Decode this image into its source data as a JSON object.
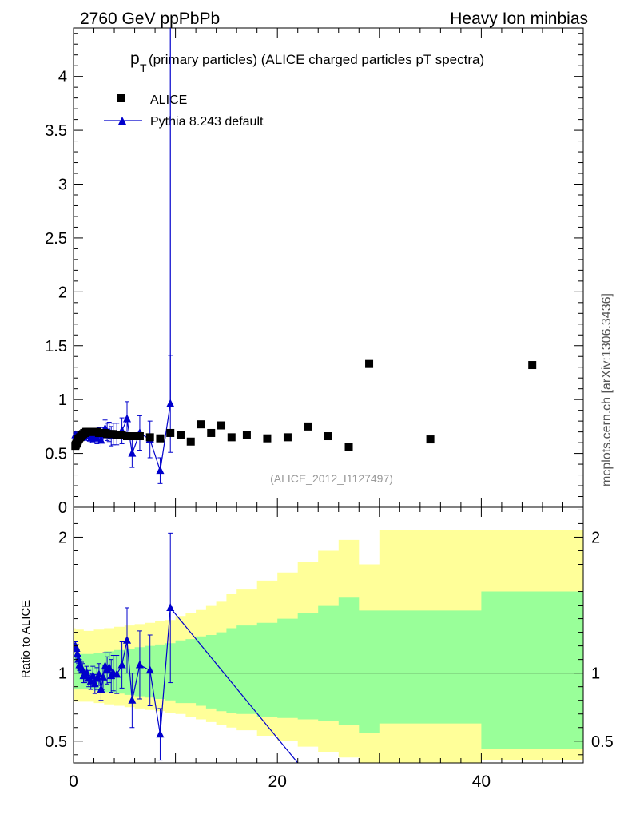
{
  "header": {
    "left": "2760 GeV ppPbPb",
    "right": "Heavy Ion minbias"
  },
  "side_label": "mcplots.cern.ch [arXiv:1306.3436]",
  "chart_data": [
    {
      "type": "scatter",
      "title_main": "p",
      "title_sub": "T",
      "title_rest": "(primary particles) (ALICE charged particles pT spectra)",
      "watermark": "(ALICE_2012_I1127497)",
      "xlim": [
        0,
        50
      ],
      "ylim": [
        0,
        4.45
      ],
      "y_ticks": [
        "0",
        "0.5",
        "1",
        "1.5",
        "2",
        "2.5",
        "3",
        "3.5",
        "4"
      ],
      "grid": false,
      "legend_position": "top-left",
      "series": [
        {
          "name": "ALICE",
          "marker": "square",
          "color": "#000000",
          "points": [
            [
              0.18,
              0.57
            ],
            [
              0.22,
              0.58
            ],
            [
              0.28,
              0.59
            ],
            [
              0.33,
              0.6
            ],
            [
              0.38,
              0.61
            ],
            [
              0.43,
              0.62
            ],
            [
              0.48,
              0.63
            ],
            [
              0.55,
              0.64
            ],
            [
              0.65,
              0.65
            ],
            [
              0.75,
              0.66
            ],
            [
              0.85,
              0.67
            ],
            [
              0.95,
              0.68
            ],
            [
              1.05,
              0.69
            ],
            [
              1.15,
              0.69
            ],
            [
              1.25,
              0.7
            ],
            [
              1.35,
              0.7
            ],
            [
              1.5,
              0.7
            ],
            [
              1.7,
              0.7
            ],
            [
              1.9,
              0.7
            ],
            [
              2.1,
              0.7
            ],
            [
              2.3,
              0.7
            ],
            [
              2.5,
              0.69
            ],
            [
              2.7,
              0.69
            ],
            [
              2.9,
              0.69
            ],
            [
              3.1,
              0.69
            ],
            [
              3.3,
              0.68
            ],
            [
              3.5,
              0.68
            ],
            [
              3.7,
              0.68
            ],
            [
              3.9,
              0.68
            ],
            [
              4.25,
              0.67
            ],
            [
              4.75,
              0.67
            ],
            [
              5.25,
              0.66
            ],
            [
              5.75,
              0.66
            ],
            [
              6.5,
              0.66
            ],
            [
              7.5,
              0.65
            ],
            [
              8.5,
              0.64
            ],
            [
              9.5,
              0.69
            ],
            [
              10.5,
              0.67
            ],
            [
              11.5,
              0.61
            ],
            [
              12.5,
              0.77
            ],
            [
              13.5,
              0.69
            ],
            [
              14.5,
              0.76
            ],
            [
              15.5,
              0.65
            ],
            [
              17.0,
              0.67
            ],
            [
              19.0,
              0.64
            ],
            [
              21.0,
              0.65
            ],
            [
              23.0,
              0.75
            ],
            [
              25.0,
              0.66
            ],
            [
              27.0,
              0.56
            ],
            [
              29.0,
              1.33
            ],
            [
              35.0,
              0.63
            ],
            [
              45.0,
              1.32
            ]
          ]
        },
        {
          "name": "Pythia 8.243 default",
          "marker": "triangle",
          "color": "#0000cc",
          "points": [
            [
              0.18,
              0.67,
              0.02
            ],
            [
              0.28,
              0.66,
              0.02
            ],
            [
              0.38,
              0.66,
              0.02
            ],
            [
              0.48,
              0.67,
              0.02
            ],
            [
              0.58,
              0.66,
              0.02
            ],
            [
              0.68,
              0.67,
              0.03
            ],
            [
              0.78,
              0.68,
              0.03
            ],
            [
              0.88,
              0.68,
              0.03
            ],
            [
              0.98,
              0.65,
              0.03
            ],
            [
              1.1,
              0.67,
              0.03
            ],
            [
              1.3,
              0.68,
              0.03
            ],
            [
              1.5,
              0.66,
              0.04
            ],
            [
              1.7,
              0.64,
              0.04
            ],
            [
              1.9,
              0.66,
              0.05
            ],
            [
              2.1,
              0.65,
              0.05
            ],
            [
              2.3,
              0.64,
              0.05
            ],
            [
              2.5,
              0.68,
              0.06
            ],
            [
              2.7,
              0.62,
              0.06
            ],
            [
              2.9,
              0.67,
              0.07
            ],
            [
              3.1,
              0.73,
              0.08
            ],
            [
              3.3,
              0.7,
              0.08
            ],
            [
              3.5,
              0.7,
              0.09
            ],
            [
              3.7,
              0.66,
              0.09
            ],
            [
              3.9,
              0.68,
              0.1
            ],
            [
              4.25,
              0.68,
              0.1
            ],
            [
              4.75,
              0.71,
              0.12
            ],
            [
              5.25,
              0.82,
              0.16
            ],
            [
              5.75,
              0.5,
              0.13
            ],
            [
              6.5,
              0.69,
              0.16
            ],
            [
              7.5,
              0.63,
              0.17
            ],
            [
              8.5,
              0.34,
              0.12
            ],
            [
              9.5,
              0.96,
              0.45
            ]
          ],
          "spike": {
            "x": 9.5,
            "y_top": 4.45
          }
        }
      ]
    },
    {
      "type": "line",
      "ylabel": "Ratio to ALICE",
      "xlim": [
        0,
        50
      ],
      "ylim": [
        0.34,
        2.22
      ],
      "x_ticks": [
        "0",
        "20",
        "40"
      ],
      "y_ticks": [
        "0.5",
        "1",
        "2"
      ],
      "band_edges": [
        0,
        0.2,
        0.5,
        1,
        2,
        3,
        4,
        5,
        6,
        7,
        8,
        9,
        10,
        11,
        12,
        13,
        14,
        15,
        16,
        18,
        20,
        22,
        24,
        26,
        28,
        30,
        40,
        50
      ],
      "band_green_lo": [
        0.88,
        0.88,
        0.88,
        0.88,
        0.87,
        0.86,
        0.85,
        0.84,
        0.83,
        0.82,
        0.81,
        0.8,
        0.78,
        0.78,
        0.76,
        0.74,
        0.72,
        0.71,
        0.7,
        0.68,
        0.67,
        0.66,
        0.65,
        0.62,
        0.56,
        0.63,
        0.44
      ],
      "band_green_hi": [
        1.14,
        1.14,
        1.14,
        1.14,
        1.15,
        1.16,
        1.17,
        1.18,
        1.19,
        1.2,
        1.21,
        1.22,
        1.24,
        1.25,
        1.27,
        1.28,
        1.3,
        1.33,
        1.35,
        1.37,
        1.4,
        1.44,
        1.5,
        1.56,
        1.46,
        1.46,
        1.6
      ],
      "band_yellow_lo": [
        0.79,
        0.79,
        0.79,
        0.79,
        0.78,
        0.77,
        0.76,
        0.75,
        0.74,
        0.73,
        0.72,
        0.71,
        0.7,
        0.68,
        0.66,
        0.64,
        0.62,
        0.6,
        0.58,
        0.54,
        0.5,
        0.46,
        0.42,
        0.38,
        0.34,
        0.34,
        0.36
      ],
      "band_yellow_hi": [
        1.33,
        1.32,
        1.32,
        1.31,
        1.32,
        1.33,
        1.34,
        1.35,
        1.36,
        1.37,
        1.38,
        1.39,
        1.42,
        1.44,
        1.47,
        1.5,
        1.53,
        1.58,
        1.62,
        1.68,
        1.74,
        1.82,
        1.9,
        1.98,
        1.8,
        2.05,
        2.05
      ],
      "ratio_points": [
        [
          0.18,
          1.2,
          0.03
        ],
        [
          0.28,
          1.18,
          0.03
        ],
        [
          0.38,
          1.14,
          0.03
        ],
        [
          0.48,
          1.1,
          0.03
        ],
        [
          0.58,
          1.06,
          0.04
        ],
        [
          0.68,
          1.05,
          0.04
        ],
        [
          0.78,
          1.04,
          0.04
        ],
        [
          0.88,
          1.02,
          0.05
        ],
        [
          0.98,
          0.98,
          0.05
        ],
        [
          1.1,
          0.98,
          0.05
        ],
        [
          1.3,
          1.0,
          0.05
        ],
        [
          1.5,
          0.96,
          0.06
        ],
        [
          1.7,
          0.94,
          0.06
        ],
        [
          1.9,
          0.98,
          0.07
        ],
        [
          2.1,
          0.92,
          0.07
        ],
        [
          2.3,
          0.96,
          0.08
        ],
        [
          2.5,
          0.99,
          0.08
        ],
        [
          2.7,
          0.88,
          0.08
        ],
        [
          2.9,
          0.97,
          0.09
        ],
        [
          3.1,
          1.05,
          0.1
        ],
        [
          3.3,
          1.02,
          0.1
        ],
        [
          3.5,
          1.04,
          0.11
        ],
        [
          3.7,
          0.98,
          0.12
        ],
        [
          3.9,
          1.0,
          0.13
        ],
        [
          4.25,
          0.99,
          0.14
        ],
        [
          4.75,
          1.06,
          0.17
        ],
        [
          5.25,
          1.24,
          0.24
        ],
        [
          5.75,
          0.8,
          0.2
        ],
        [
          6.5,
          1.06,
          0.25
        ],
        [
          7.5,
          1.02,
          0.26
        ],
        [
          8.5,
          0.55,
          0.19
        ],
        [
          9.5,
          1.48,
          0.55
        ]
      ],
      "ratio_tail": {
        "x": 22.0,
        "y": 0.34
      }
    }
  ]
}
